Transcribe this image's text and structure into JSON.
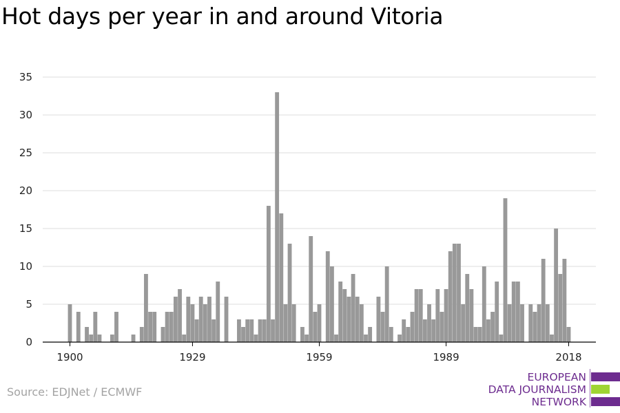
{
  "title": "Hot days per year in and around Vitoria",
  "source": "Source: EDJNet / ECMWF",
  "logo": {
    "lines": [
      "EUROPEAN",
      "DATA JOURNALISM",
      "NETWORK"
    ],
    "colors": [
      "#6d2c8f",
      "#9fd533",
      "#6d2c8f"
    ]
  },
  "colors": {
    "bar": "#999999",
    "grid": "#dcdcdc",
    "axis": "#000000",
    "source": "#a3a3a3",
    "brand": "#6d2c8f",
    "accent": "#9fd533"
  },
  "chart_data": {
    "type": "bar",
    "title": "Hot days per year in and around Vitoria",
    "xlabel": "",
    "ylabel": "",
    "ylim": [
      0,
      35
    ],
    "yticks": [
      0,
      5,
      10,
      15,
      20,
      25,
      30,
      35
    ],
    "xticks": [
      1900,
      1929,
      1959,
      1989,
      2018
    ],
    "xrange": [
      1900,
      2018
    ],
    "grid": true,
    "legend": "none",
    "x": [
      1900,
      1901,
      1902,
      1903,
      1904,
      1905,
      1906,
      1907,
      1908,
      1909,
      1910,
      1911,
      1912,
      1913,
      1914,
      1915,
      1916,
      1917,
      1918,
      1919,
      1920,
      1921,
      1922,
      1923,
      1924,
      1925,
      1926,
      1927,
      1928,
      1929,
      1930,
      1931,
      1932,
      1933,
      1934,
      1935,
      1936,
      1937,
      1938,
      1939,
      1940,
      1941,
      1942,
      1943,
      1944,
      1945,
      1946,
      1947,
      1948,
      1949,
      1950,
      1951,
      1952,
      1953,
      1954,
      1955,
      1956,
      1957,
      1958,
      1959,
      1960,
      1961,
      1962,
      1963,
      1964,
      1965,
      1966,
      1967,
      1968,
      1969,
      1970,
      1971,
      1972,
      1973,
      1974,
      1975,
      1976,
      1977,
      1978,
      1979,
      1980,
      1981,
      1982,
      1983,
      1984,
      1985,
      1986,
      1987,
      1988,
      1989,
      1990,
      1991,
      1992,
      1993,
      1994,
      1995,
      1996,
      1997,
      1998,
      1999,
      2000,
      2001,
      2002,
      2003,
      2004,
      2005,
      2006,
      2007,
      2008,
      2009,
      2010,
      2011,
      2012,
      2013,
      2014,
      2015,
      2016,
      2017,
      2018
    ],
    "values": [
      5,
      0,
      4,
      0,
      2,
      1,
      4,
      1,
      0,
      0,
      1,
      4,
      0,
      0,
      0,
      1,
      0,
      2,
      9,
      4,
      4,
      0,
      2,
      4,
      4,
      6,
      7,
      1,
      6,
      5,
      3,
      6,
      5,
      6,
      3,
      8,
      0,
      6,
      0,
      0,
      3,
      2,
      3,
      3,
      1,
      3,
      3,
      18,
      3,
      33,
      17,
      5,
      13,
      5,
      0,
      2,
      1,
      14,
      4,
      5,
      0,
      12,
      10,
      1,
      8,
      7,
      6,
      9,
      6,
      5,
      1,
      2,
      0,
      6,
      4,
      10,
      2,
      0,
      1,
      3,
      2,
      4,
      7,
      7,
      3,
      5,
      3,
      7,
      4,
      7,
      12,
      13,
      13,
      5,
      9,
      7,
      2,
      2,
      10,
      3,
      4,
      8,
      1,
      19,
      5,
      8,
      8,
      5,
      0,
      5,
      4,
      5,
      11,
      5,
      1,
      15,
      9,
      11,
      2
    ]
  }
}
